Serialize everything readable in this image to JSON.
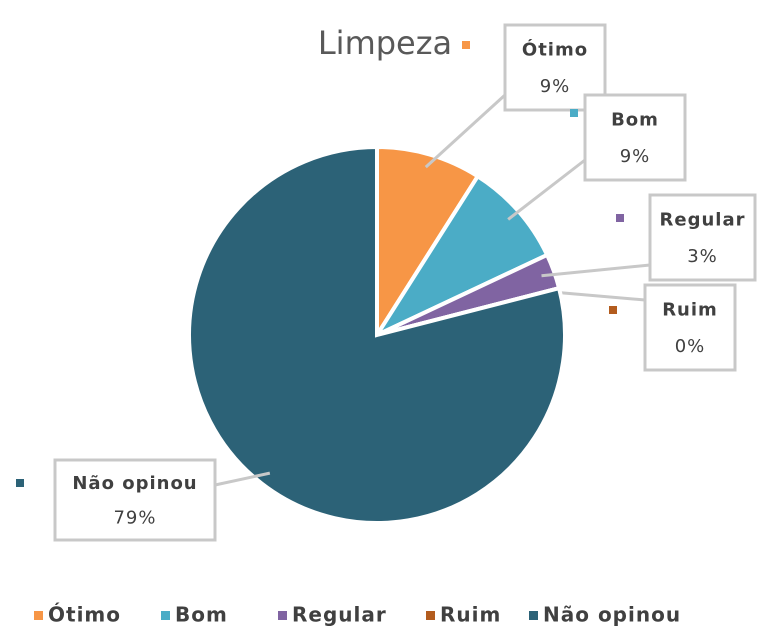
{
  "chart_data": {
    "type": "pie",
    "title": "Limpeza",
    "categories": [
      "Ótimo",
      "Bom",
      "Regular",
      "Ruim",
      "Não opinou"
    ],
    "values": [
      9,
      9,
      3,
      0,
      79
    ],
    "value_labels": [
      "9%",
      "9%",
      "3%",
      "0%",
      "79%"
    ],
    "colors": [
      "#f79646",
      "#4bacc6",
      "#8064a2",
      "#b35c1e",
      "#2c6277"
    ],
    "legend": "bottom"
  }
}
